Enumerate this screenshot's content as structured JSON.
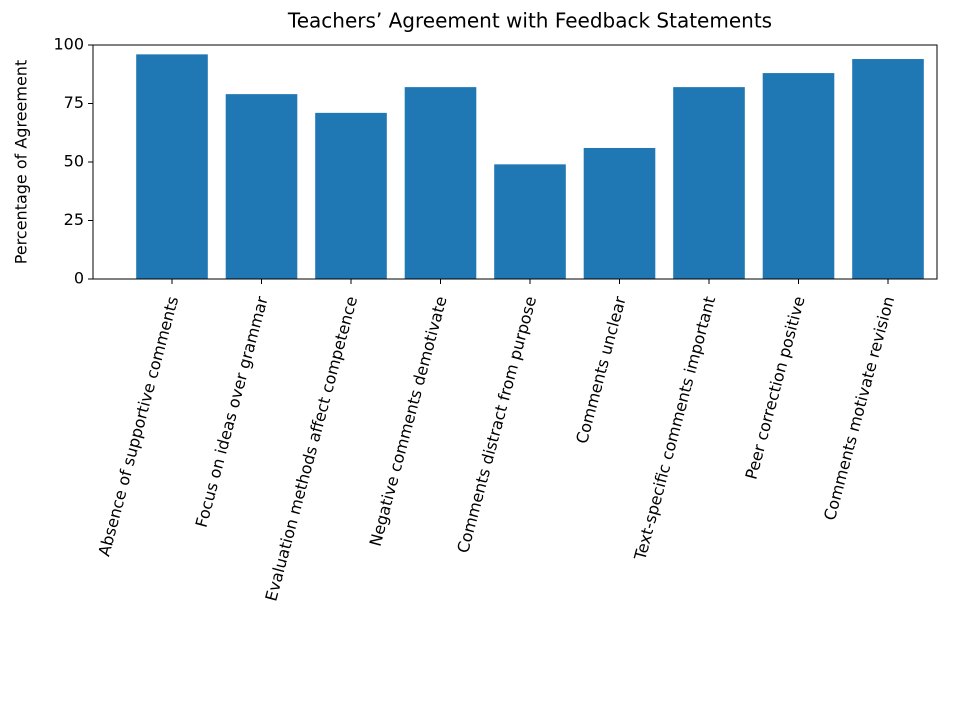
{
  "chart_data": {
    "type": "bar",
    "title": "Teachers’ Agreement with Feedback Statements",
    "ylabel": "Percentage of Agreement",
    "categories": [
      "Absence of supportive comments",
      "Focus on ideas over grammar",
      "Evaluation methods affect competence",
      "Negative comments demotivate",
      "Comments distract from purpose",
      "Comments unclear",
      "Text-specific comments important",
      "Peer correction positive",
      "Comments motivate revision"
    ],
    "values": [
      96,
      79,
      71,
      82,
      49,
      56,
      82,
      88,
      94
    ],
    "color": "#1f77b4",
    "ylim": [
      0,
      100
    ],
    "yticks": [
      0,
      25,
      50,
      75,
      100
    ],
    "grid": false
  }
}
